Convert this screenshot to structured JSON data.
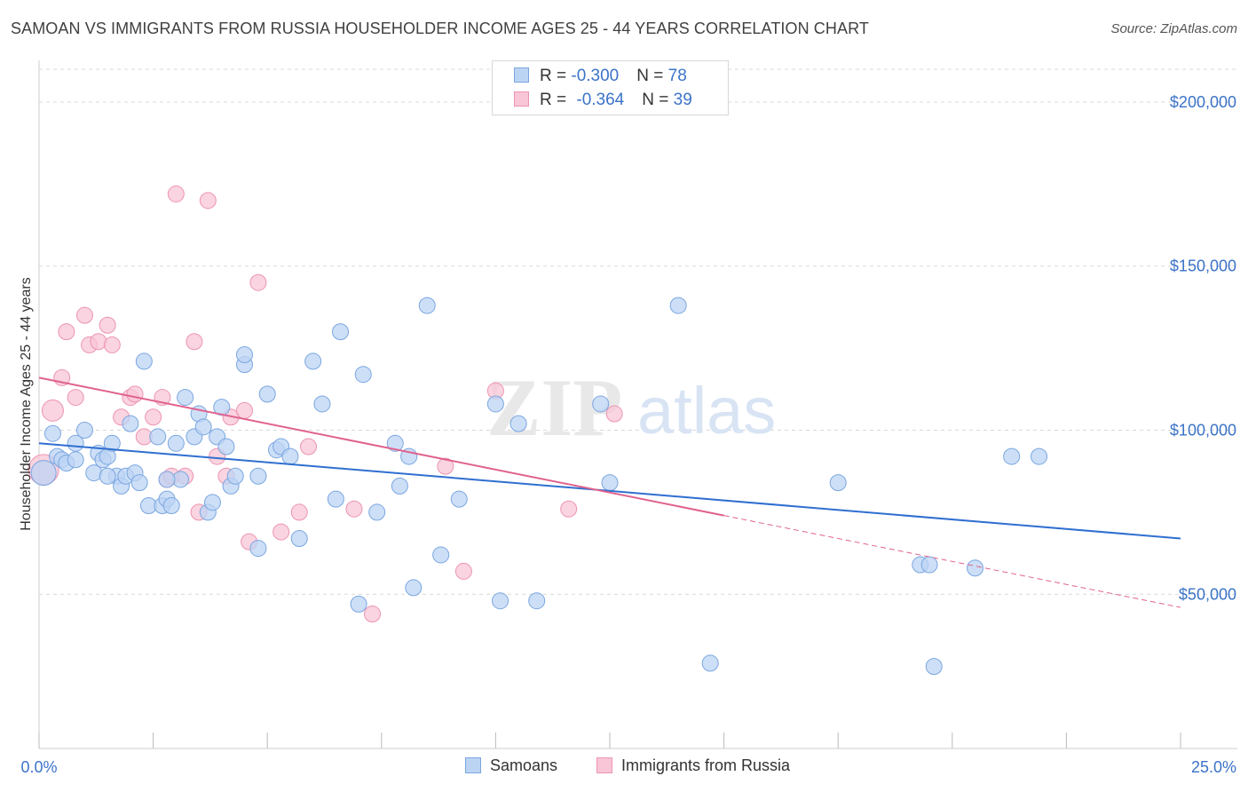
{
  "title": "SAMOAN VS IMMIGRANTS FROM RUSSIA HOUSEHOLDER INCOME AGES 25 - 44 YEARS CORRELATION CHART",
  "source": "Source: ZipAtlas.com",
  "watermark": {
    "zip": "ZIP",
    "atlas": "atlas"
  },
  "legend_top": [
    {
      "r_label": "R = ",
      "r_value": "-0.300",
      "n_label": "N = ",
      "n_value": "78"
    },
    {
      "r_label": "R = ",
      "r_value": "-0.364",
      "n_label": "N = ",
      "n_value": "39"
    }
  ],
  "legend_bottom": [
    "Samoans",
    "Immigrants from Russia"
  ],
  "colors": {
    "samoan_fill": "#bcd4f4",
    "samoan_stroke": "#7aa6e0",
    "samoan_line": "#2f6fd0",
    "russia_fill": "#f8c6d6",
    "russia_stroke": "#ec94b2",
    "russia_line": "#e0628e",
    "axis_text": "#3b73c8",
    "grid": "#d9d9d9"
  },
  "chart_data": {
    "type": "scatter",
    "title": "SAMOAN VS IMMIGRANTS FROM RUSSIA HOUSEHOLDER INCOME AGES 25 - 44 YEARS CORRELATION CHART",
    "xlabel": "",
    "ylabel": "Householder Income Ages 25 - 44 years",
    "xlim": [
      0,
      25
    ],
    "ylim": [
      3000,
      210000
    ],
    "x_tick_labels": [
      "0.0%",
      "25.0%"
    ],
    "y_ticks": [
      50000,
      100000,
      150000,
      200000
    ],
    "y_tick_labels": [
      "$50,000",
      "$100,000",
      "$150,000",
      "$200,000"
    ],
    "series": [
      {
        "name": "Samoans",
        "r": -0.3,
        "n": 78,
        "trend": {
          "x": [
            0,
            25
          ],
          "y": [
            96000,
            67000
          ],
          "dashed_from": null
        },
        "points": [
          [
            0.1,
            87000
          ],
          [
            0.3,
            99000
          ],
          [
            0.4,
            92000
          ],
          [
            0.5,
            91000
          ],
          [
            0.6,
            90000
          ],
          [
            0.8,
            91000
          ],
          [
            0.8,
            96000
          ],
          [
            1.0,
            100000
          ],
          [
            1.2,
            87000
          ],
          [
            1.3,
            93000
          ],
          [
            1.4,
            91000
          ],
          [
            1.5,
            92000
          ],
          [
            1.6,
            96000
          ],
          [
            1.7,
            86000
          ],
          [
            1.8,
            83000
          ],
          [
            1.9,
            86000
          ],
          [
            2.0,
            102000
          ],
          [
            2.1,
            87000
          ],
          [
            2.2,
            84000
          ],
          [
            2.3,
            121000
          ],
          [
            2.4,
            77000
          ],
          [
            2.6,
            98000
          ],
          [
            2.7,
            77000
          ],
          [
            2.8,
            79000
          ],
          [
            2.9,
            77000
          ],
          [
            3.0,
            96000
          ],
          [
            3.1,
            85000
          ],
          [
            3.2,
            110000
          ],
          [
            3.4,
            98000
          ],
          [
            3.5,
            105000
          ],
          [
            3.6,
            101000
          ],
          [
            3.7,
            75000
          ],
          [
            3.8,
            78000
          ],
          [
            3.9,
            98000
          ],
          [
            4.0,
            107000
          ],
          [
            4.1,
            95000
          ],
          [
            4.2,
            83000
          ],
          [
            4.3,
            86000
          ],
          [
            4.5,
            120000
          ],
          [
            4.5,
            123000
          ],
          [
            4.8,
            86000
          ],
          [
            5.0,
            111000
          ],
          [
            5.2,
            94000
          ],
          [
            5.3,
            95000
          ],
          [
            5.5,
            92000
          ],
          [
            5.7,
            67000
          ],
          [
            6.0,
            121000
          ],
          [
            6.2,
            108000
          ],
          [
            6.5,
            79000
          ],
          [
            6.6,
            130000
          ],
          [
            7.1,
            117000
          ],
          [
            7.0,
            47000
          ],
          [
            7.4,
            75000
          ],
          [
            7.8,
            96000
          ],
          [
            7.9,
            83000
          ],
          [
            8.1,
            92000
          ],
          [
            8.2,
            52000
          ],
          [
            8.5,
            138000
          ],
          [
            8.8,
            62000
          ],
          [
            9.2,
            79000
          ],
          [
            10.0,
            108000
          ],
          [
            10.5,
            102000
          ],
          [
            10.9,
            48000
          ],
          [
            10.1,
            48000
          ],
          [
            12.3,
            108000
          ],
          [
            12.5,
            84000
          ],
          [
            14.0,
            138000
          ],
          [
            14.7,
            29000
          ],
          [
            17.5,
            84000
          ],
          [
            19.6,
            28000
          ],
          [
            19.3,
            59000
          ],
          [
            19.5,
            59000
          ],
          [
            20.5,
            58000
          ],
          [
            21.3,
            92000
          ],
          [
            21.9,
            92000
          ],
          [
            4.8,
            64000
          ],
          [
            2.8,
            85000
          ],
          [
            1.5,
            86000
          ]
        ]
      },
      {
        "name": "Immigrants from Russia",
        "r": -0.364,
        "n": 39,
        "trend": {
          "x": [
            0,
            15,
            25
          ],
          "y": [
            116000,
            74000,
            46000
          ],
          "dashed_from": 15
        },
        "points": [
          [
            0.1,
            88000
          ],
          [
            0.3,
            106000
          ],
          [
            0.5,
            116000
          ],
          [
            0.6,
            130000
          ],
          [
            0.8,
            110000
          ],
          [
            1.0,
            135000
          ],
          [
            1.1,
            126000
          ],
          [
            1.3,
            127000
          ],
          [
            1.5,
            132000
          ],
          [
            1.6,
            126000
          ],
          [
            1.8,
            104000
          ],
          [
            2.0,
            110000
          ],
          [
            2.1,
            111000
          ],
          [
            2.3,
            98000
          ],
          [
            2.5,
            104000
          ],
          [
            2.7,
            110000
          ],
          [
            2.8,
            85000
          ],
          [
            2.9,
            86000
          ],
          [
            3.0,
            172000
          ],
          [
            3.2,
            86000
          ],
          [
            3.4,
            127000
          ],
          [
            3.5,
            75000
          ],
          [
            3.7,
            170000
          ],
          [
            3.9,
            92000
          ],
          [
            4.1,
            86000
          ],
          [
            4.2,
            104000
          ],
          [
            4.5,
            106000
          ],
          [
            4.6,
            66000
          ],
          [
            4.8,
            145000
          ],
          [
            5.3,
            69000
          ],
          [
            5.7,
            75000
          ],
          [
            5.9,
            95000
          ],
          [
            6.9,
            76000
          ],
          [
            7.3,
            44000
          ],
          [
            8.9,
            89000
          ],
          [
            9.3,
            57000
          ],
          [
            10.0,
            112000
          ],
          [
            11.6,
            76000
          ],
          [
            12.6,
            105000
          ]
        ]
      }
    ]
  }
}
